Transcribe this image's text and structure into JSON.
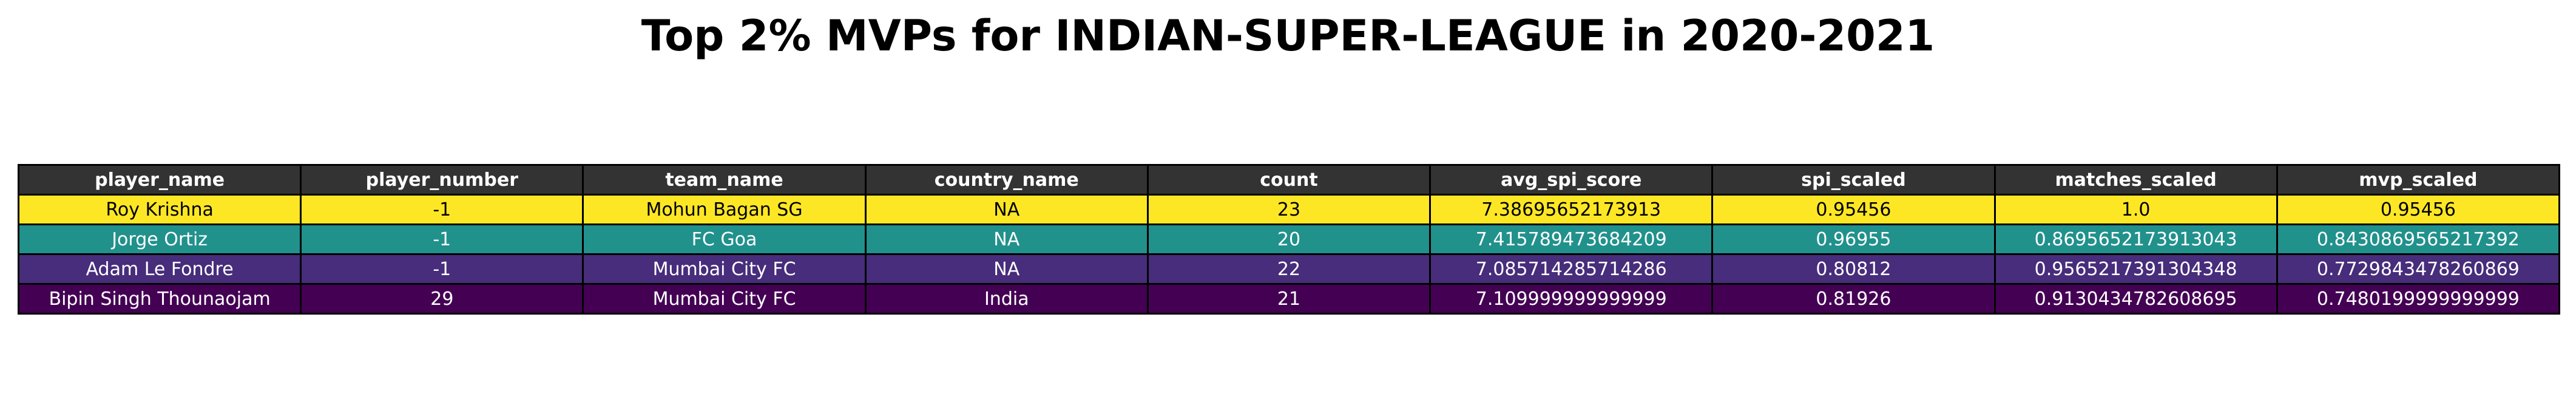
{
  "chart_data": {
    "type": "table",
    "title": "Top 2% MVPs for INDIAN-SUPER-LEAGUE in 2020-2021",
    "columns": [
      "player_name",
      "player_number",
      "team_name",
      "country_name",
      "count",
      "avg_spi_score",
      "spi_scaled",
      "matches_scaled",
      "mvp_scaled"
    ],
    "rows": [
      [
        "Roy Krishna",
        "-1",
        "Mohun Bagan SG",
        "NA",
        "23",
        "7.38695652173913",
        "0.95456",
        "1.0",
        "0.95456"
      ],
      [
        "Jorge Ortiz",
        "-1",
        "FC Goa",
        "NA",
        "20",
        "7.415789473684209",
        "0.96955",
        "0.8695652173913043",
        "0.8430869565217392"
      ],
      [
        "Adam Le Fondre",
        "-1",
        "Mumbai City FC",
        "NA",
        "22",
        "7.085714285714286",
        "0.80812",
        "0.9565217391304348",
        "0.7729843478260869"
      ],
      [
        "Bipin Singh Thounaojam",
        "29",
        "Mumbai City FC",
        "India",
        "21",
        "7.109999999999999",
        "0.81926",
        "0.9130434782608695",
        "0.7480199999999999"
      ]
    ],
    "row_colors": [
      {
        "background": "#fde725",
        "text": "#000000"
      },
      {
        "background": "#21918c",
        "text": "#ffffff"
      },
      {
        "background": "#472d7b",
        "text": "#ffffff"
      },
      {
        "background": "#440154",
        "text": "#ffffff"
      }
    ],
    "header_colors": {
      "background": "#333333",
      "text": "#ffffff"
    }
  }
}
